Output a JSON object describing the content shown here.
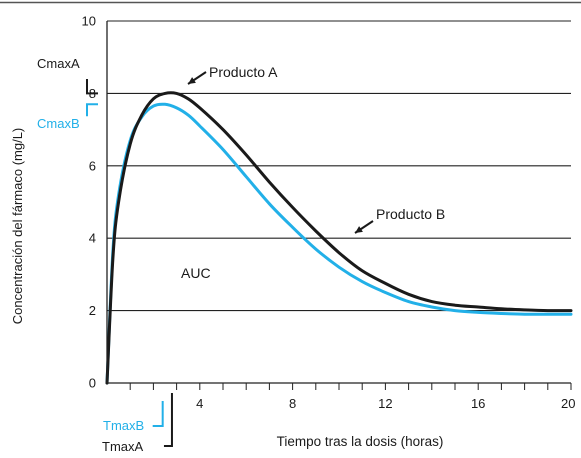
{
  "chart_data": {
    "type": "line",
    "title": "",
    "xlabel": "Tiempo tras la dosis (horas)",
    "ylabel": "Concentración del fármaco (mg/L)",
    "xlim": [
      0,
      20
    ],
    "ylim": [
      0,
      10
    ],
    "x_ticks": [
      4,
      8,
      12,
      16,
      20
    ],
    "x_tick_labels": [
      "4",
      "8",
      "12",
      "16",
      "20"
    ],
    "y_ticks": [
      0,
      2,
      4,
      6,
      8,
      10
    ],
    "y_tick_labels": [
      "0",
      "2",
      "4",
      "6",
      "8",
      "10"
    ],
    "grid": "horizontal",
    "series": [
      {
        "name": "Producto A",
        "color": "#1a1a1a",
        "x": [
          0,
          0.25,
          0.5,
          1,
          1.5,
          2,
          2.5,
          3,
          3.5,
          4,
          5,
          6,
          7,
          8,
          9,
          10,
          11,
          12,
          13,
          14,
          15,
          16,
          17,
          18,
          19,
          20
        ],
        "y": [
          0,
          3.4,
          5.0,
          6.6,
          7.4,
          7.85,
          8.0,
          8.0,
          7.85,
          7.6,
          7.0,
          6.3,
          5.55,
          4.85,
          4.2,
          3.6,
          3.1,
          2.75,
          2.45,
          2.25,
          2.15,
          2.1,
          2.05,
          2.02,
          2.0,
          2.0
        ]
      },
      {
        "name": "Producto B",
        "color": "#22b0e8",
        "x": [
          0,
          0.25,
          0.5,
          1,
          1.5,
          2,
          2.5,
          3,
          3.5,
          4,
          5,
          6,
          7,
          8,
          9,
          10,
          11,
          12,
          13,
          14,
          15,
          16,
          17,
          18,
          19,
          20
        ],
        "y": [
          0,
          3.6,
          5.2,
          6.7,
          7.35,
          7.65,
          7.7,
          7.6,
          7.4,
          7.1,
          6.45,
          5.7,
          4.95,
          4.3,
          3.7,
          3.2,
          2.8,
          2.5,
          2.25,
          2.1,
          2.0,
          1.95,
          1.92,
          1.9,
          1.9,
          1.9
        ]
      }
    ],
    "annotations": [
      {
        "text": "Producto A",
        "color": "#1a1a1a"
      },
      {
        "text": "Producto B",
        "color": "#1a1a1a"
      },
      {
        "text": "AUC",
        "color": "#1a1a1a"
      },
      {
        "text": "CmaxA",
        "value": 8.0,
        "color": "#1a1a1a"
      },
      {
        "text": "CmaxB",
        "value": 7.7,
        "color": "#22b0e8"
      },
      {
        "text": "TmaxA",
        "value": 2.8,
        "color": "#1a1a1a"
      },
      {
        "text": "TmaxB",
        "value": 2.4,
        "color": "#22b0e8"
      }
    ]
  }
}
